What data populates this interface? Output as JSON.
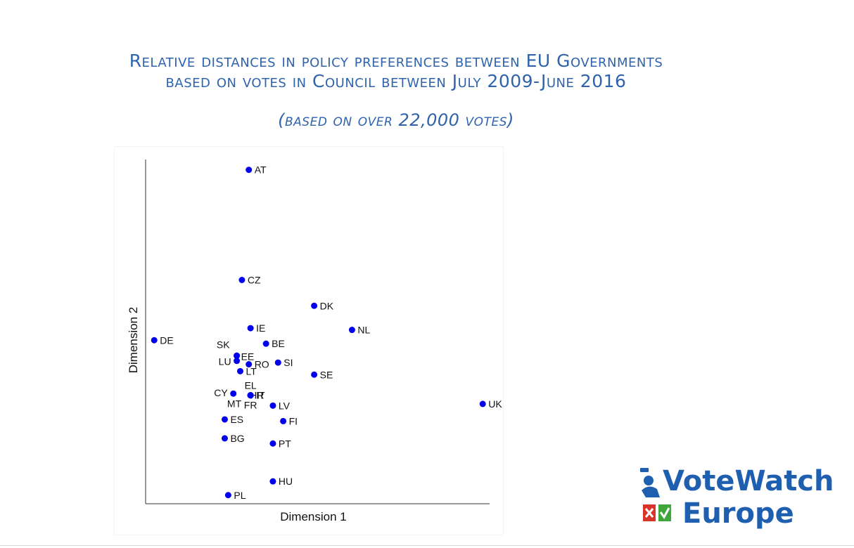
{
  "title_line1": "Relative distances in policy preferences between EU Governments",
  "title_line2": "based on votes in Council between July 2009-June 2016",
  "subtitle": "(based on over 22,000 votes)",
  "logo": {
    "line1": "VoteWatch",
    "line2": "Europe",
    "colors": {
      "text": "#1f5fb0",
      "red": "#d9342b",
      "green": "#3ea63a"
    }
  },
  "chart_data": {
    "type": "scatter",
    "xlabel": "Dimension 1",
    "ylabel": "Dimension 2",
    "xlim": [
      0,
      100
    ],
    "ylim": [
      0,
      100
    ],
    "grid": false,
    "marker_color": "#0000ee",
    "points": [
      {
        "label": "AT",
        "x": 30,
        "y": 97
      },
      {
        "label": "CZ",
        "x": 28,
        "y": 65
      },
      {
        "label": "DK",
        "x": 49,
        "y": 57.5
      },
      {
        "label": "IE",
        "x": 30.5,
        "y": 51
      },
      {
        "label": "NL",
        "x": 60,
        "y": 50.5
      },
      {
        "label": "DE",
        "x": 2.5,
        "y": 47.5
      },
      {
        "label": "BE",
        "x": 35,
        "y": 46.5
      },
      {
        "label": "SK",
        "x": 26.5,
        "y": 43
      },
      {
        "label": "EE",
        "x": 26.5,
        "y": 43
      },
      {
        "label": "LU",
        "x": 26.5,
        "y": 41.5
      },
      {
        "label": "RO",
        "x": 30,
        "y": 40.5
      },
      {
        "label": "SI",
        "x": 38.5,
        "y": 41
      },
      {
        "label": "LT",
        "x": 27.5,
        "y": 38.5
      },
      {
        "label": "SE",
        "x": 49,
        "y": 37.5
      },
      {
        "label": "EL",
        "x": 30.5,
        "y": 31.5
      },
      {
        "label": "CY",
        "x": 25.5,
        "y": 32
      },
      {
        "label": "HR",
        "x": 30.5,
        "y": 31.5
      },
      {
        "label": "IT",
        "x": 30.5,
        "y": 31.5
      },
      {
        "label": "MT",
        "x": 30.5,
        "y": 31.5
      },
      {
        "label": "FR",
        "x": 30.5,
        "y": 31.5
      },
      {
        "label": "UK",
        "x": 98,
        "y": 29
      },
      {
        "label": "LV",
        "x": 37,
        "y": 28.5
      },
      {
        "label": "ES",
        "x": 23,
        "y": 24.5
      },
      {
        "label": "FI",
        "x": 40,
        "y": 24
      },
      {
        "label": "BG",
        "x": 23,
        "y": 19
      },
      {
        "label": "PT",
        "x": 37,
        "y": 17.5
      },
      {
        "label": "HU",
        "x": 37,
        "y": 6.5
      },
      {
        "label": "PL",
        "x": 24,
        "y": 2.5
      }
    ]
  }
}
